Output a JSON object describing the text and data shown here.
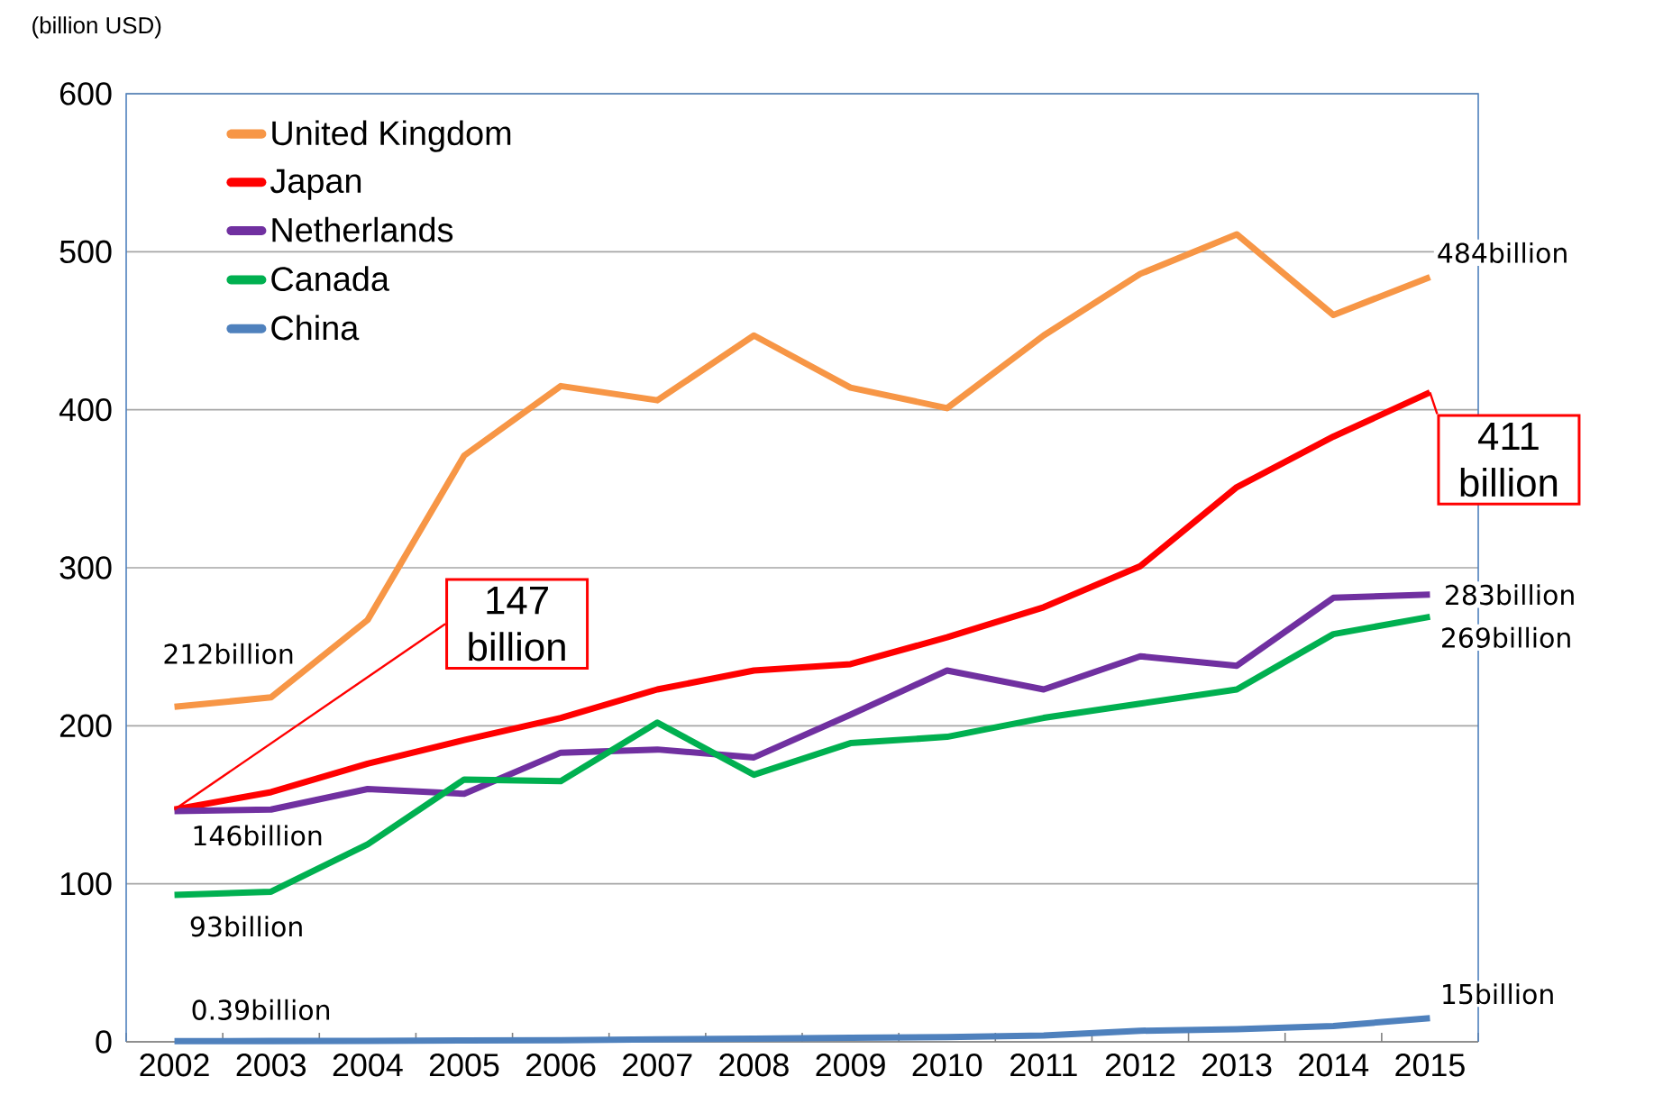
{
  "chart_data": {
    "type": "line",
    "ylabel": "(billion USD)",
    "categories": [
      "2002",
      "2003",
      "2004",
      "2005",
      "2006",
      "2007",
      "2008",
      "2009",
      "2010",
      "2011",
      "2012",
      "2013",
      "2014",
      "2015"
    ],
    "ylim": [
      0,
      600
    ],
    "yticks": [
      0,
      100,
      200,
      300,
      400,
      500,
      600
    ],
    "grid": "y",
    "legend": "top left",
    "marker": "none",
    "line_style": "solid",
    "series": [
      {
        "name": "United Kingdom",
        "color": "#f79646",
        "values": [
          212,
          218,
          267,
          371,
          415,
          406,
          447,
          414,
          401,
          447,
          486,
          511,
          460,
          484
        ],
        "value_labels": [
          "212billion",
          null,
          null,
          null,
          null,
          null,
          null,
          null,
          null,
          null,
          null,
          null,
          null,
          "484billion"
        ]
      },
      {
        "name": "Japan",
        "color": "#ff0000",
        "values": [
          147,
          158,
          176,
          191,
          205,
          223,
          235,
          239,
          256,
          275,
          301,
          351,
          383,
          411
        ],
        "value_labels": [
          "147 billion",
          null,
          null,
          null,
          null,
          null,
          null,
          null,
          null,
          null,
          null,
          null,
          null,
          "411 billion"
        ]
      },
      {
        "name": "Netherlands",
        "color": "#7030a0",
        "values": [
          146,
          147,
          160,
          157,
          183,
          185,
          180,
          207,
          235,
          223,
          244,
          238,
          281,
          283
        ],
        "value_labels": [
          "146billion",
          null,
          null,
          null,
          null,
          null,
          null,
          null,
          null,
          null,
          null,
          null,
          null,
          "283billion"
        ]
      },
      {
        "name": "Canada",
        "color": "#00b050",
        "values": [
          93,
          95,
          125,
          166,
          165,
          202,
          169,
          189,
          193,
          205,
          214,
          223,
          258,
          269
        ],
        "value_labels": [
          "93billion",
          null,
          null,
          null,
          null,
          null,
          null,
          null,
          null,
          null,
          null,
          null,
          null,
          "269billion"
        ]
      },
      {
        "name": "China",
        "color": "#4f81bd",
        "values": [
          0.39,
          0.5,
          0.6,
          0.8,
          1,
          1.5,
          2,
          2.5,
          3,
          4,
          7,
          8,
          10,
          15
        ],
        "value_labels": [
          "0.39billion",
          null,
          null,
          null,
          null,
          null,
          null,
          null,
          null,
          null,
          null,
          null,
          null,
          "15billion"
        ]
      }
    ]
  }
}
